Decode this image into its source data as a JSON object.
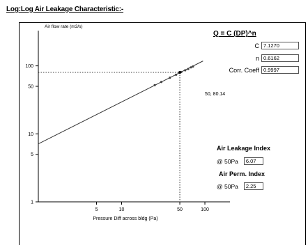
{
  "heading": "Log:Log Air Leakage Characteristic:-",
  "formula": "Q = C (DP)^n",
  "params": [
    {
      "label": "C",
      "value": "7.1270"
    },
    {
      "label": "n",
      "value": "0.6162"
    },
    {
      "label": "Corr. Coeff",
      "value": "0.9997"
    }
  ],
  "indices": {
    "leakage": {
      "title": "Air Leakage Index",
      "at": "@ 50Pa",
      "value": "6.07"
    },
    "perm": {
      "title": "Air Perm. Index",
      "at": "@ 50Pa",
      "value": "2.25"
    }
  },
  "chart_data": {
    "type": "scatter",
    "title": "",
    "xlabel": "Pressure Diff across bldg (Pa)",
    "ylabel": "Air flow rate (m3/s)",
    "x_scale": "log",
    "y_scale": "log",
    "xlim": [
      1,
      200
    ],
    "ylim": [
      1,
      300
    ],
    "x_ticks": [
      5,
      10,
      50,
      100
    ],
    "x_tick_labels": [
      "5",
      "10",
      "50",
      "100"
    ],
    "y_ticks": [
      1,
      5,
      10,
      50,
      100
    ],
    "y_tick_labels": [
      "1",
      "5",
      "10",
      "50",
      "100"
    ],
    "fit_line": {
      "C": 7.127,
      "n": 0.6162
    },
    "points": [
      {
        "x": 25,
        "y": 52
      },
      {
        "x": 30,
        "y": 58
      },
      {
        "x": 38,
        "y": 67
      },
      {
        "x": 45,
        "y": 74
      },
      {
        "x": 52,
        "y": 81
      },
      {
        "x": 58,
        "y": 86
      },
      {
        "x": 63,
        "y": 90
      },
      {
        "x": 68,
        "y": 95
      },
      {
        "x": 72,
        "y": 98
      }
    ],
    "marker": {
      "x": 50,
      "y": 80.14,
      "label": "50, 80.14"
    },
    "grid": false
  }
}
